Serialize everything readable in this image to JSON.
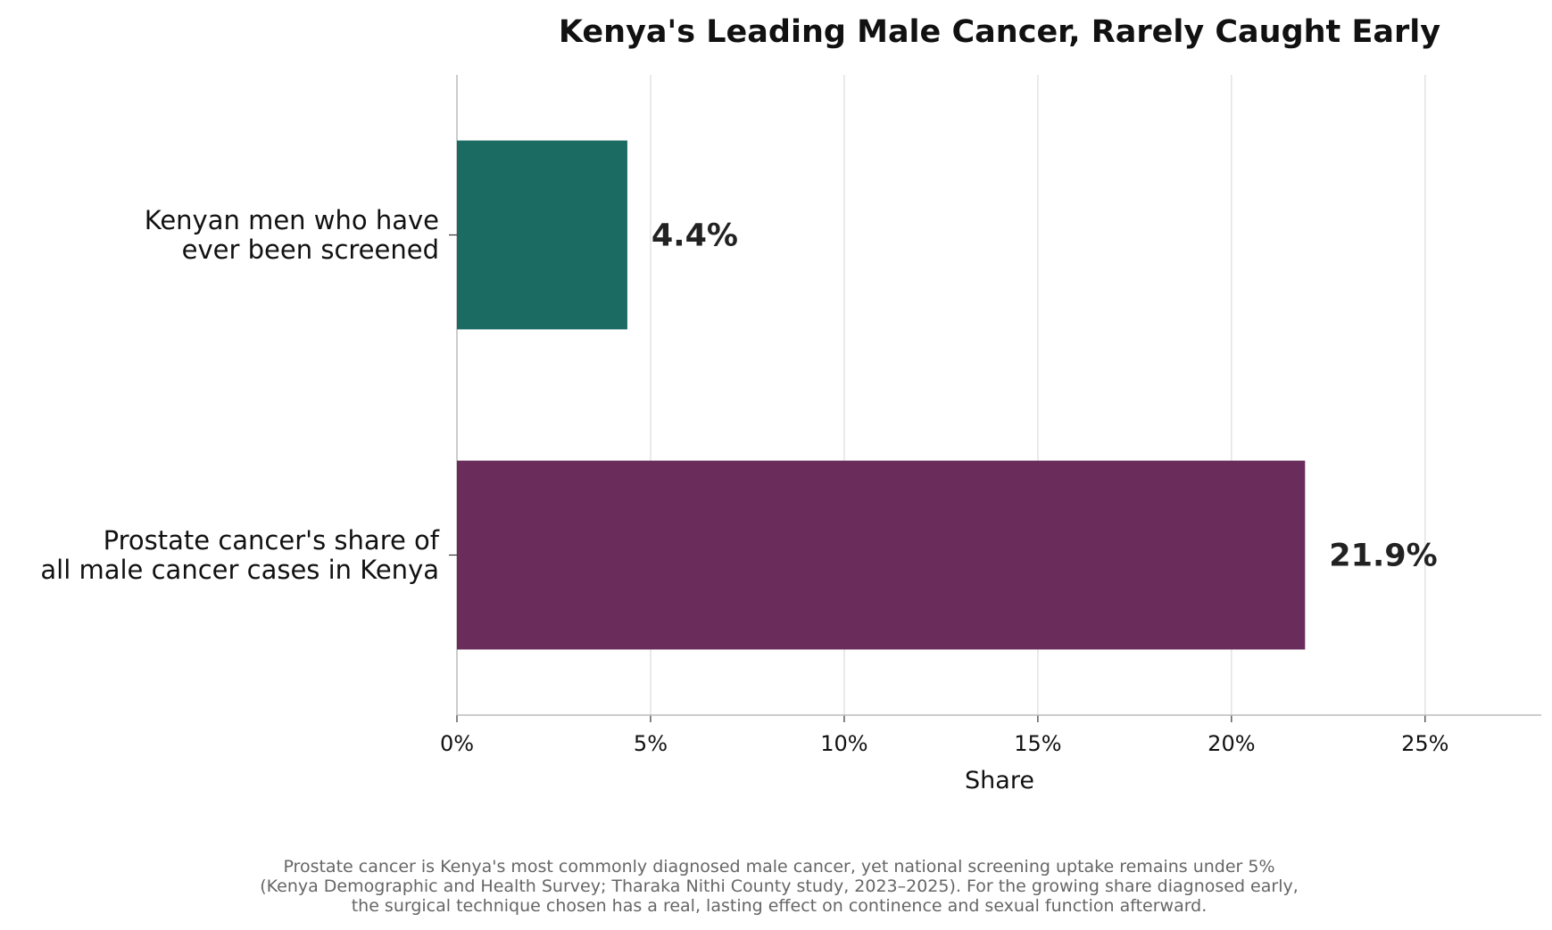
{
  "chart_data": {
    "type": "bar",
    "orientation": "horizontal",
    "title": "Kenya's Leading Male Cancer, Rarely Caught Early",
    "xlabel": "Share",
    "ylabel": "",
    "xlim": [
      0,
      28
    ],
    "x_ticks": [
      0,
      5,
      10,
      15,
      20,
      25
    ],
    "x_tick_labels": [
      "0%",
      "5%",
      "10%",
      "15%",
      "20%",
      "25%"
    ],
    "grid": "vertical",
    "categories": [
      [
        "Kenyan men who have",
        "ever been screened"
      ],
      [
        "Prostate cancer's share of",
        "all male cancer cases in Kenya"
      ]
    ],
    "values": [
      4.4,
      21.9
    ],
    "value_labels": [
      "4.4%",
      "21.9%"
    ],
    "bar_colors": [
      "#1c6b63",
      "#6a2c5b"
    ],
    "footnote": [
      "Prostate cancer is Kenya's most commonly diagnosed male cancer, yet national screening uptake remains under 5%",
      "(Kenya Demographic and Health Survey; Tharaka Nithi County study, 2023–2025). For the growing share diagnosed early,",
      "the surgical technique chosen has a real, lasting effect on continence and sexual function afterward."
    ]
  }
}
